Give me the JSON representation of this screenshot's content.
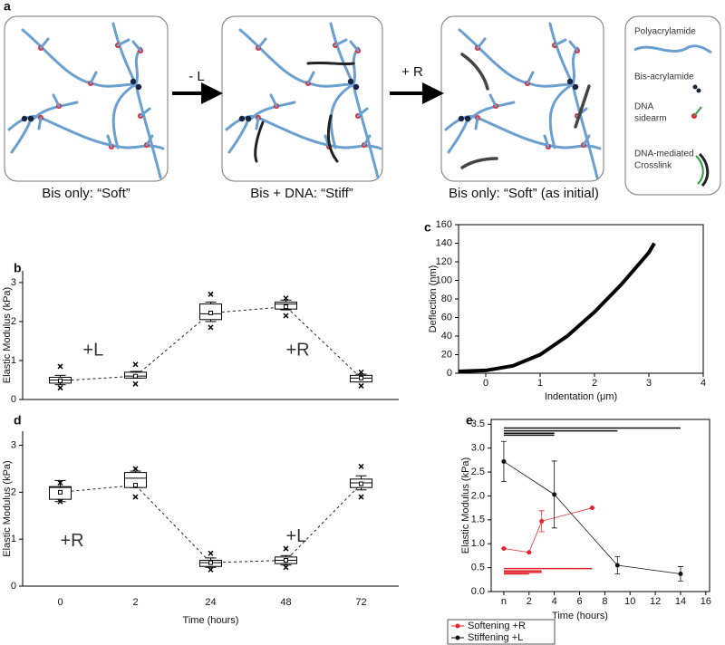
{
  "diagram": {
    "panel": "a",
    "captions": [
      "Bis only: “Soft”",
      "Bis + DNA: “Stiff”",
      "Bis only: “Soft” (as initial)"
    ],
    "arrows": [
      "- L",
      "+ R"
    ],
    "legend": [
      [
        "Polyacrylamide"
      ],
      [
        "Bis-acrylamide"
      ],
      [
        "DNA",
        "sidearm"
      ],
      [
        "DNA-mediated",
        "Crosslink"
      ]
    ]
  },
  "chart_data": [
    {
      "type": "box",
      "panel": "b",
      "ylabel": "Elastic Modulus (kPa)",
      "ylim": [
        0,
        3.3
      ],
      "yticks": [
        0,
        1,
        2,
        3
      ],
      "annotations": [
        "+L",
        "+R"
      ],
      "boxes": [
        {
          "min": 0.38,
          "q1": 0.42,
          "median": 0.5,
          "q3": 0.57,
          "max": 0.62,
          "mean": 0.48,
          "outliers": [
            0.85,
            0.3
          ]
        },
        {
          "min": 0.55,
          "q1": 0.55,
          "median": 0.6,
          "q3": 0.7,
          "max": 0.72,
          "mean": 0.6,
          "outliers": [
            0.9,
            0.4
          ]
        },
        {
          "min": 2.0,
          "q1": 2.05,
          "median": 2.2,
          "q3": 2.45,
          "max": 2.5,
          "mean": 2.22,
          "outliers": [
            2.7,
            1.85
          ]
        },
        {
          "min": 2.3,
          "q1": 2.32,
          "median": 2.45,
          "q3": 2.5,
          "max": 2.55,
          "mean": 2.38,
          "outliers": [
            2.6,
            2.15
          ]
        },
        {
          "min": 0.45,
          "q1": 0.45,
          "median": 0.55,
          "q3": 0.62,
          "max": 0.65,
          "mean": 0.55,
          "outliers": [
            0.7,
            0.35
          ]
        }
      ]
    },
    {
      "type": "line",
      "panel": "c",
      "xlabel": "Indentation (μm)",
      "ylabel": "Deflection (nm)",
      "xlim": [
        -0.5,
        4
      ],
      "xticks": [
        0,
        1,
        2,
        3,
        4
      ],
      "ylim": [
        0,
        160
      ],
      "yticks": [
        0,
        20,
        40,
        60,
        80,
        100,
        120,
        140,
        160
      ],
      "color": "#000000",
      "x": [
        -0.5,
        0,
        0.5,
        1,
        1.5,
        2,
        2.5,
        3,
        3.1
      ],
      "values": [
        2,
        3,
        8,
        20,
        40,
        66,
        96,
        130,
        140
      ]
    },
    {
      "type": "box",
      "panel": "d",
      "ylabel": "Elastic Modulus (kPa)",
      "xlabel": "Time (hours)",
      "categories": [
        "0",
        "2",
        "24",
        "48",
        "72"
      ],
      "ylim": [
        0,
        3.3
      ],
      "yticks": [
        0,
        1,
        2,
        3
      ],
      "annotations": [
        "+R",
        "+L"
      ],
      "boxes": [
        {
          "min": 1.8,
          "q1": 1.85,
          "median": 2.1,
          "q3": 2.12,
          "max": 2.25,
          "mean": 2.0,
          "outliers": [
            2.2,
            1.8
          ]
        },
        {
          "min": 2.1,
          "q1": 2.1,
          "median": 2.3,
          "q3": 2.42,
          "max": 2.45,
          "mean": 2.15,
          "outliers": [
            2.5,
            1.9
          ]
        },
        {
          "min": 0.4,
          "q1": 0.42,
          "median": 0.5,
          "q3": 0.55,
          "max": 0.6,
          "mean": 0.5,
          "outliers": [
            0.7,
            0.35
          ]
        },
        {
          "min": 0.45,
          "q1": 0.48,
          "median": 0.55,
          "q3": 0.62,
          "max": 0.65,
          "mean": 0.55,
          "outliers": [
            0.8,
            0.4
          ]
        },
        {
          "min": 2.05,
          "q1": 2.1,
          "median": 2.2,
          "q3": 2.28,
          "max": 2.35,
          "mean": 2.18,
          "outliers": [
            2.55,
            1.9
          ]
        }
      ]
    },
    {
      "type": "errorline",
      "panel": "e",
      "xlabel": "Time (hours)",
      "ylabel": "Elastic Modulus (kPa)",
      "xlim": [
        -1,
        16.3
      ],
      "xticks": [
        {
          "value": 0,
          "label": "n"
        },
        2,
        4,
        6,
        8,
        10,
        12,
        14,
        16
      ],
      "ylim": [
        0,
        3.6
      ],
      "yticks": [
        {
          "value": 0,
          "label": "0.0"
        },
        0.5,
        {
          "value": 1,
          "label": "1.0"
        },
        1.5,
        {
          "value": 2,
          "label": "2.0"
        },
        2.5,
        {
          "value": 3,
          "label": "3.0"
        },
        3.5
      ],
      "legend": "bottom-left",
      "series": [
        {
          "name": "Softening +R",
          "color": "#e0262b",
          "x": [
            0,
            2,
            3,
            7
          ],
          "values": [
            0.9,
            0.82,
            1.47,
            1.75
          ],
          "errors": [
            0,
            0,
            0.22,
            0
          ]
        },
        {
          "name": "Stiffening +L",
          "color": "#111111",
          "x": [
            0,
            4,
            9,
            14
          ],
          "values": [
            2.72,
            2.03,
            0.55,
            0.37
          ],
          "errors": [
            0.42,
            0.7,
            0.18,
            0.15
          ]
        }
      ],
      "brackets": [
        {
          "from": 0,
          "to": 14,
          "y": 3.42,
          "color": "#111111"
        },
        {
          "from": 0,
          "to": 9,
          "y": 3.36,
          "color": "#111111"
        },
        {
          "from": 0,
          "to": 4,
          "y": 3.31,
          "color": "#111111"
        },
        {
          "from": 0,
          "to": 4,
          "y": 3.27,
          "color": "#111111"
        },
        {
          "from": 0,
          "to": 7,
          "y": 0.48,
          "color": "#e0262b"
        },
        {
          "from": 0,
          "to": 3,
          "y": 0.43,
          "color": "#e0262b"
        },
        {
          "from": 0,
          "to": 3,
          "y": 0.4,
          "color": "#e0262b"
        },
        {
          "from": 0,
          "to": 2,
          "y": 0.37,
          "color": "#e0262b"
        }
      ]
    }
  ]
}
